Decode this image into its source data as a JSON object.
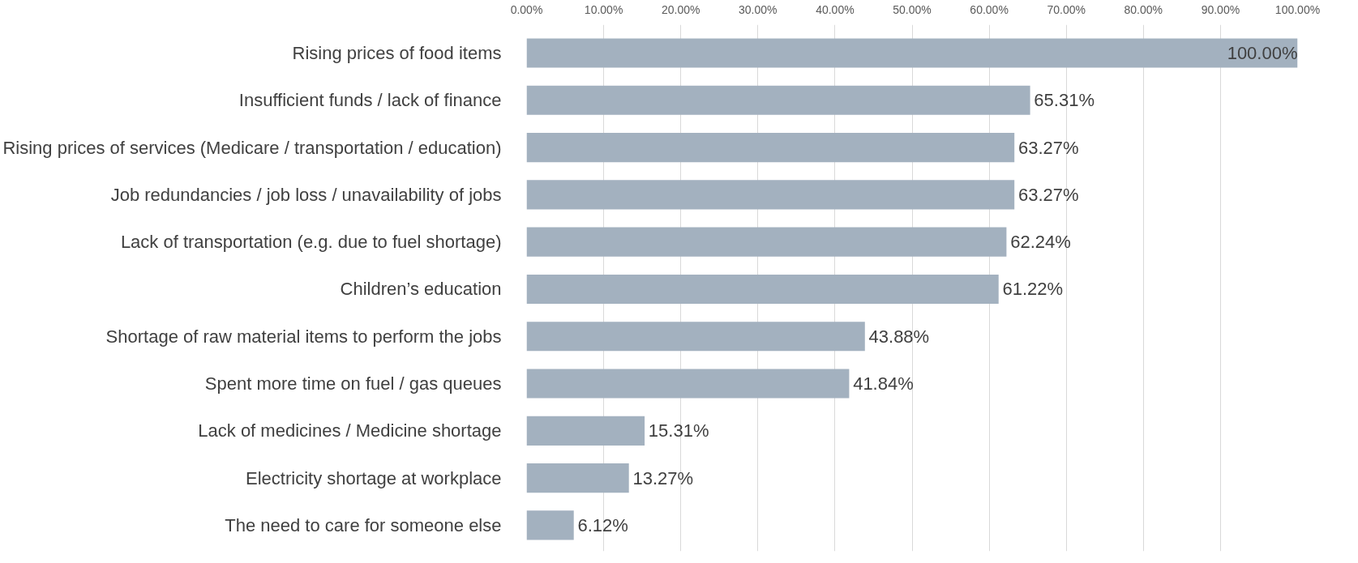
{
  "chart_data": {
    "type": "bar",
    "orientation": "horizontal",
    "categories": [
      "Rising prices of food items",
      "Insufficient funds / lack of finance",
      "Rising prices of services (Medicare / transportation / education)",
      "Job redundancies / job loss / unavailability of jobs",
      "Lack of transportation (e.g. due to fuel shortage)",
      "Children’s education",
      "Shortage of raw material items to perform the jobs",
      "Spent more time on fuel / gas queues",
      "Lack of medicines / Medicine shortage",
      "Electricity shortage at workplace",
      "The need to care for someone else"
    ],
    "values": [
      100,
      65.31,
      63.27,
      63.27,
      62.24,
      61.22,
      43.88,
      41.84,
      15.31,
      13.27,
      6.12
    ],
    "value_labels": [
      "100.00%",
      "65.31%",
      "63.27%",
      "63.27%",
      "62.24%",
      "61.22%",
      "43.88%",
      "41.84%",
      "15.31%",
      "13.27%",
      "6.12%"
    ],
    "color": "#a3b1bf",
    "xlim": [
      0,
      100
    ],
    "xticks": [
      {
        "value": 0,
        "label": "0.00%"
      },
      {
        "value": 10,
        "label": "10.00%"
      },
      {
        "value": 20,
        "label": "20.00%"
      },
      {
        "value": 30,
        "label": "30.00%"
      },
      {
        "value": 40,
        "label": "40.00%"
      },
      {
        "value": 50,
        "label": "50.00%"
      },
      {
        "value": 60,
        "label": "60.00%"
      },
      {
        "value": 70,
        "label": "70.00%"
      },
      {
        "value": 80,
        "label": "80.00%"
      },
      {
        "value": 90,
        "label": "90.00%"
      },
      {
        "value": 100,
        "label": "100.00%"
      }
    ],
    "grid": "x"
  }
}
